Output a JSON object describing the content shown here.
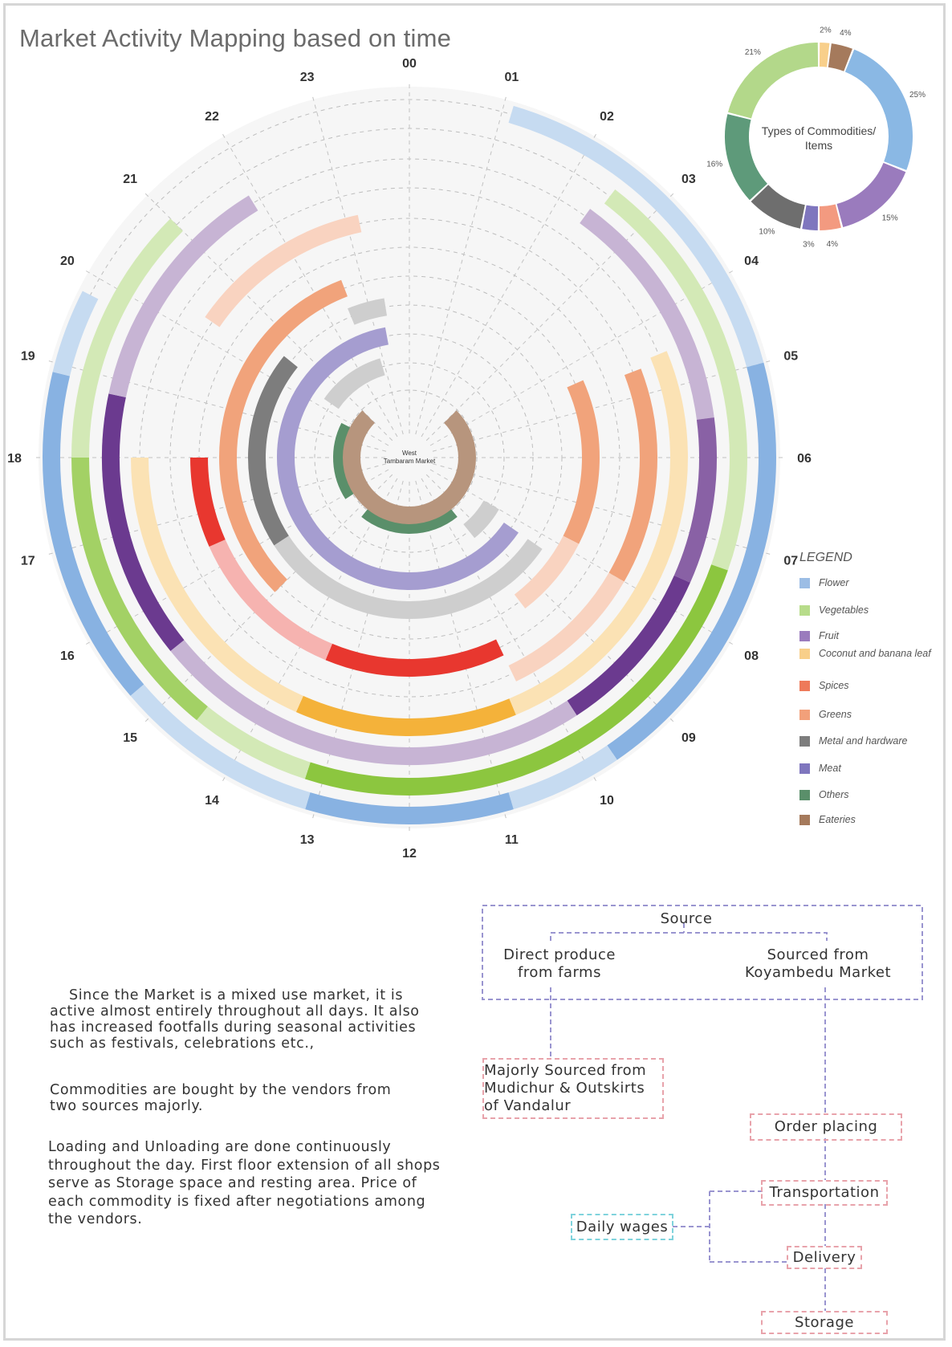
{
  "title": "Market Activity Mapping based on time",
  "colors": {
    "Flower": "#6a9fdb",
    "Vegetables": "#8cc63f",
    "Fruit": "#6b3a8f",
    "Coconut and banana leaf": "#f4b23a",
    "Spices": "#e8372f",
    "Greens": "#ee8c5a",
    "Metal and hardware": "#7d7d7d",
    "Meat": "#8f85c4",
    "Others": "#5a8f6a",
    "Eateries": "#a57a5c"
  },
  "chart_data": [
    {
      "type": "radial-timeline",
      "title": "Market Activity Mapping based on time",
      "center_label": "West Tambaram Market",
      "hours": [
        "00",
        "01",
        "02",
        "03",
        "04",
        "05",
        "06",
        "07",
        "08",
        "09",
        "10",
        "11",
        "12",
        "13",
        "14",
        "15",
        "16",
        "17",
        "18",
        "19",
        "20",
        "21",
        "22",
        "23"
      ],
      "rings": [
        {
          "category": "Flower",
          "segments": [
            {
              "start": 1.1,
              "end": 5.0,
              "intensity": "light"
            },
            {
              "start": 5.0,
              "end": 9.7,
              "intensity": "medium"
            },
            {
              "start": 9.7,
              "end": 10.9,
              "intensity": "light"
            },
            {
              "start": 10.9,
              "end": 13.1,
              "intensity": "medium"
            },
            {
              "start": 13.1,
              "end": 15.3,
              "intensity": "light"
            },
            {
              "start": 15.3,
              "end": 18.9,
              "intensity": "medium"
            },
            {
              "start": 18.9,
              "end": 19.8,
              "intensity": "light"
            }
          ]
        },
        {
          "category": "Vegetables",
          "segments": [
            {
              "start": 2.5,
              "end": 7.3,
              "intensity": "light"
            },
            {
              "start": 7.3,
              "end": 13.2,
              "intensity": "strong"
            },
            {
              "start": 13.2,
              "end": 14.6,
              "intensity": "light"
            },
            {
              "start": 14.6,
              "end": 18.0,
              "intensity": "medium"
            },
            {
              "start": 18.0,
              "end": 21.0,
              "intensity": "light"
            }
          ]
        },
        {
          "category": "Fruit",
          "segments": [
            {
              "start": 2.4,
              "end": 5.5,
              "intensity": "light"
            },
            {
              "start": 5.5,
              "end": 7.6,
              "intensity": "medium"
            },
            {
              "start": 7.6,
              "end": 9.8,
              "intensity": "strong"
            },
            {
              "start": 9.8,
              "end": 15.4,
              "intensity": "light"
            },
            {
              "start": 15.4,
              "end": 18.8,
              "intensity": "strong"
            },
            {
              "start": 18.8,
              "end": 21.9,
              "intensity": "light"
            }
          ]
        },
        {
          "category": "Coconut and banana leaf",
          "segments": [
            {
              "start": 4.5,
              "end": 10.5,
              "intensity": "light"
            },
            {
              "start": 10.5,
              "end": 13.6,
              "intensity": "strong"
            },
            {
              "start": 13.6,
              "end": 18.0,
              "intensity": "light"
            }
          ]
        },
        {
          "category": "Greens",
          "segments": [
            {
              "start": 20.3,
              "end": 23.2,
              "intensity": "light"
            },
            {
              "start": 4.6,
              "end": 8.0,
              "intensity": "medium"
            },
            {
              "start": 8.0,
              "end": 10.3,
              "intensity": "light"
            }
          ]
        },
        {
          "category": "Spices",
          "segments": [
            {
              "start": 10.3,
              "end": 13.5,
              "intensity": "strong"
            },
            {
              "start": 13.5,
              "end": 16.4,
              "intensity": "light"
            },
            {
              "start": 16.4,
              "end": 18.0,
              "intensity": "strong"
            }
          ]
        },
        {
          "category": "Greens",
          "segments": [
            {
              "start": 15.0,
              "end": 22.6,
              "intensity": "medium"
            },
            {
              "start": 4.4,
              "end": 7.8,
              "intensity": "medium"
            },
            {
              "start": 7.8,
              "end": 9.5,
              "intensity": "light"
            }
          ]
        },
        {
          "category": "Metal and hardware",
          "segments": [
            {
              "start": 22.5,
              "end": 23.4,
              "intensity": "light"
            },
            {
              "start": 15.8,
              "end": 20.6,
              "intensity": "strong"
            },
            {
              "start": 8.3,
              "end": 15.8,
              "intensity": "light"
            }
          ]
        },
        {
          "category": "Meat",
          "segments": [
            {
              "start": 8.3,
              "end": 23.3,
              "intensity": "medium"
            }
          ]
        },
        {
          "category": "Metal and hardware",
          "segments": [
            {
              "start": 8.0,
              "end": 9.4,
              "intensity": "light"
            },
            {
              "start": 20.3,
              "end": 22.9,
              "intensity": "light"
            }
          ]
        },
        {
          "category": "Others",
          "segments": [
            {
              "start": 9.4,
              "end": 14.6,
              "intensity": "strong"
            },
            {
              "start": 15.8,
              "end": 19.8,
              "intensity": "strong"
            }
          ]
        },
        {
          "category": "Eateries",
          "segments": [
            {
              "start": 3.0,
              "end": 21.0,
              "intensity": "medium"
            }
          ]
        }
      ]
    },
    {
      "type": "pie",
      "title": "Types of Commodities/ Items",
      "categories": [
        "Coconut and banana leaf",
        "Eateries",
        "Flower",
        "Fruit",
        "Spices",
        "Meat",
        "Metal and hardware",
        "Others",
        "Vegetables"
      ],
      "values": [
        2,
        4,
        25,
        15,
        4,
        3,
        10,
        16,
        21
      ],
      "labels": [
        "2%",
        "4%",
        "25%",
        "15%",
        "4%",
        "3%",
        "10%",
        "16%",
        "21%"
      ]
    }
  ],
  "legend": {
    "title": "LEGEND",
    "items": [
      {
        "label": "Flower",
        "color": "#6a9fdb"
      },
      {
        "label": "Vegetables",
        "color": "#8cc63f"
      },
      {
        "label": "Fruit",
        "color": "#6b3a8f"
      },
      {
        "label": "Coconut and banana leaf",
        "color": "#f4b23a"
      },
      {
        "label": "Spices",
        "color": "#e8372f"
      },
      {
        "label": "Greens",
        "color": "#ee8c5a"
      },
      {
        "label": "Metal and hardware",
        "color": "#7d7d7d"
      },
      {
        "label": "Meat",
        "color": "#8f85c4"
      },
      {
        "label": "Others",
        "color": "#5a8f6a"
      },
      {
        "label": "Eateries",
        "color": "#a57a5c"
      }
    ]
  },
  "text": {
    "p1": "Since the Market is a mixed use market, it is active almost entirely throughout all days. It also has increased footfalls during seasonal activities such as festivals, celebrations etc.,",
    "p2": "Commodities are bought by the vendors from two sources majorly.",
    "p3": "Loading and Unloading are done continuously throughout the day. First floor extension of all shops serve as Storage space and resting area. Price of each commodity is fixed after negotiations among the vendors."
  },
  "flow": {
    "source": "Source",
    "direct": "Direct produce from farms",
    "koyambedu": "Sourced from Koyambedu Market",
    "mudichur": "Majorly Sourced from Mudichur & Outskirts of Vandalur",
    "order": "Order placing",
    "transport": "Transportation",
    "delivery": "Delivery",
    "storage": "Storage",
    "wages": "Daily wages"
  }
}
